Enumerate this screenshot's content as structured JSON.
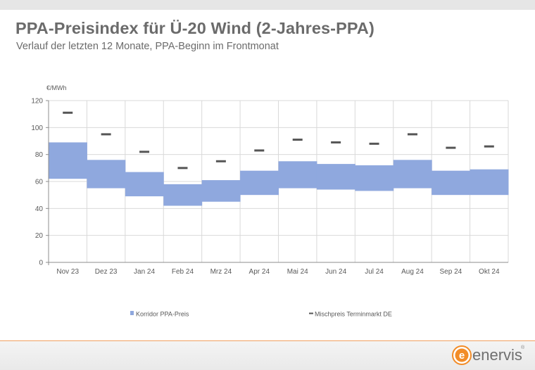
{
  "header": {
    "title": "PPA-Preisindex für Ü-20 Wind (2-Jahres-PPA)",
    "subtitle": "Verlauf der letzten 12 Monate, PPA-Beginn im Frontmonat"
  },
  "brand": {
    "name": "enervis",
    "registered": "®",
    "logo_letter": "e",
    "accent_color": "#f28c28"
  },
  "chart_data": {
    "type": "bar",
    "unit_label": "€/MWh",
    "categories": [
      "Nov 23",
      "Dez 23",
      "Jan 24",
      "Feb 24",
      "Mrz 24",
      "Apr 24",
      "Mai 24",
      "Jun 24",
      "Jul 24",
      "Aug 24",
      "Sep 24",
      "Okt 24"
    ],
    "ylim": [
      0,
      120
    ],
    "yticks": [
      0,
      20,
      40,
      60,
      80,
      100,
      120
    ],
    "grid": true,
    "legend_position": "bottom",
    "series": [
      {
        "name": "Korridor PPA-Preis",
        "kind": "range",
        "color": "#8fa8de",
        "low": [
          62,
          55,
          49,
          42,
          45,
          50,
          55,
          54,
          53,
          55,
          50,
          50
        ],
        "high": [
          89,
          76,
          67,
          58,
          61,
          68,
          75,
          73,
          72,
          76,
          68,
          69
        ]
      },
      {
        "name": "Mischpreis Terminmarkt DE",
        "kind": "marker",
        "color": "#555555",
        "values": [
          111,
          95,
          82,
          70,
          75,
          83,
          91,
          89,
          88,
          95,
          85,
          86
        ]
      }
    ]
  }
}
